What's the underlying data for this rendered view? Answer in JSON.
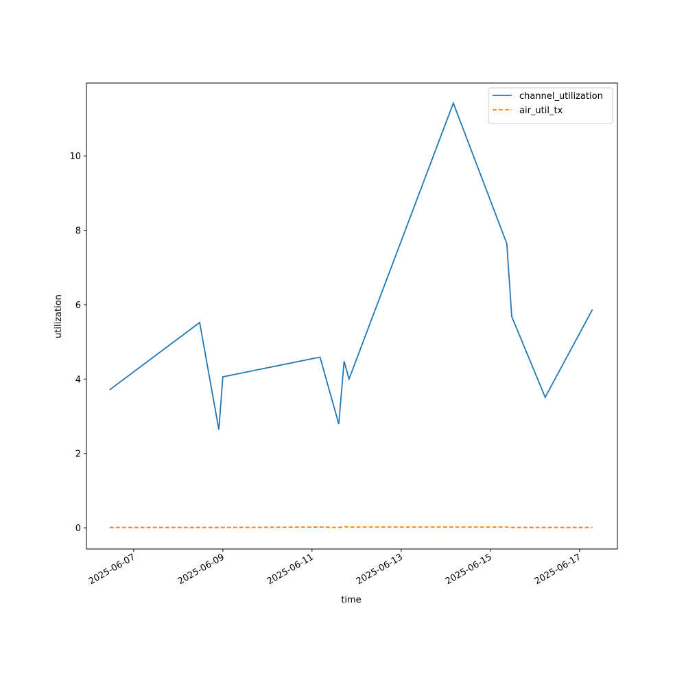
{
  "chart_data": {
    "type": "line",
    "x_label": "time",
    "y_label": "utilization",
    "x": [
      20245.46,
      20247.48,
      20247.91,
      20248.0,
      20250.18,
      20250.6,
      20250.72,
      20250.83,
      20253.17,
      20254.37,
      20254.48,
      20255.23,
      20256.29
    ],
    "series": [
      {
        "name": "channel_utilization",
        "color": "#1f77b4",
        "dash": "solid",
        "values": [
          3.71,
          5.52,
          2.64,
          4.06,
          4.59,
          2.79,
          4.48,
          4.0,
          11.42,
          7.64,
          5.68,
          3.51,
          5.87
        ]
      },
      {
        "name": "air_util_tx",
        "color": "#ff7f0e",
        "dash": "dashed",
        "values": [
          0.01,
          0.01,
          0.01,
          0.01,
          0.02,
          0.01,
          0.03,
          0.02,
          0.02,
          0.02,
          0.01,
          0.01,
          0.01
        ]
      }
    ],
    "xlim": [
      20244.94,
      20256.85
    ],
    "xticks": [
      {
        "value": 20246,
        "label": "2025-06-07"
      },
      {
        "value": 20248,
        "label": "2025-06-09"
      },
      {
        "value": 20250,
        "label": "2025-06-11"
      },
      {
        "value": 20252,
        "label": "2025-06-13"
      },
      {
        "value": 20254,
        "label": "2025-06-15"
      },
      {
        "value": 20256,
        "label": "2025-06-17"
      }
    ],
    "ylim": [
      -0.57,
      11.96
    ],
    "yticks": [
      0,
      2,
      4,
      6,
      8,
      10
    ],
    "grid": false,
    "legend": "upper-right"
  }
}
